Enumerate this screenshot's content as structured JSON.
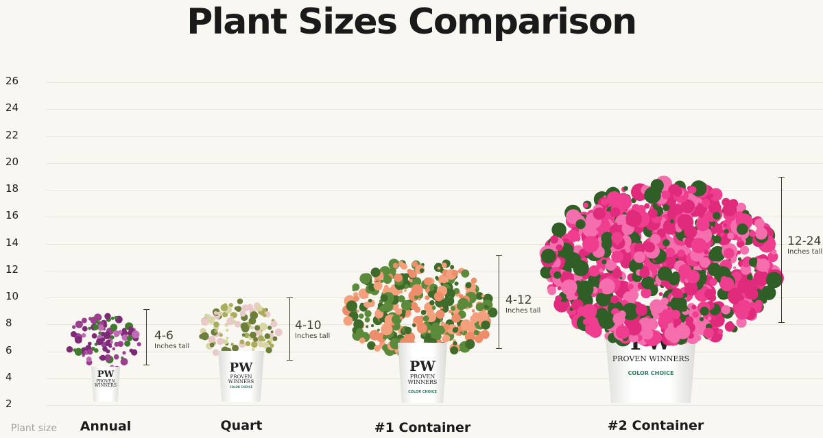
{
  "title": "Plant Sizes Comparison",
  "axis_name": "Plant size",
  "chart_data": {
    "type": "bar",
    "title": "Plant Sizes Comparison",
    "xlabel": "Plant size",
    "ylabel": "",
    "yticks": [
      "26",
      "24",
      "22",
      "20",
      "18",
      "16",
      "14",
      "12",
      "10",
      "8",
      "6",
      "4",
      "2"
    ],
    "ylim": [
      2,
      26
    ],
    "grid": true,
    "categories": [
      "Annual",
      "Quart",
      "#1 Container",
      "#2 Container"
    ],
    "ranges": [
      {
        "label": "4-6",
        "unit": "Inches tall",
        "low": 4,
        "high": 6
      },
      {
        "label": "4-10",
        "unit": "Inches tall",
        "low": 4,
        "high": 10
      },
      {
        "label": "4-12",
        "unit": "Inches tall",
        "low": 4,
        "high": 12
      },
      {
        "label": "12-24",
        "unit": "Inches tall",
        "low": 12,
        "high": 24
      }
    ]
  },
  "pot_logo": {
    "mark": "PW",
    "brand": "PROVEN WINNERS",
    "sub": "COLOR CHOICE"
  },
  "colors": {
    "annual": [
      "#9b3f8f",
      "#c06bb5",
      "#7d2a76",
      "#3f7a2e"
    ],
    "quart": [
      "#d8d6a4",
      "#a8ac5c",
      "#6d7d3a",
      "#e9c9c9"
    ],
    "container1": [
      "#f4a07c",
      "#ee8d6a",
      "#3e6b2a",
      "#5b8a3a"
    ],
    "container2": [
      "#ef3d8f",
      "#f56fae",
      "#e02a7c",
      "#2f5e26"
    ],
    "range_bar": "#3d3a30"
  }
}
